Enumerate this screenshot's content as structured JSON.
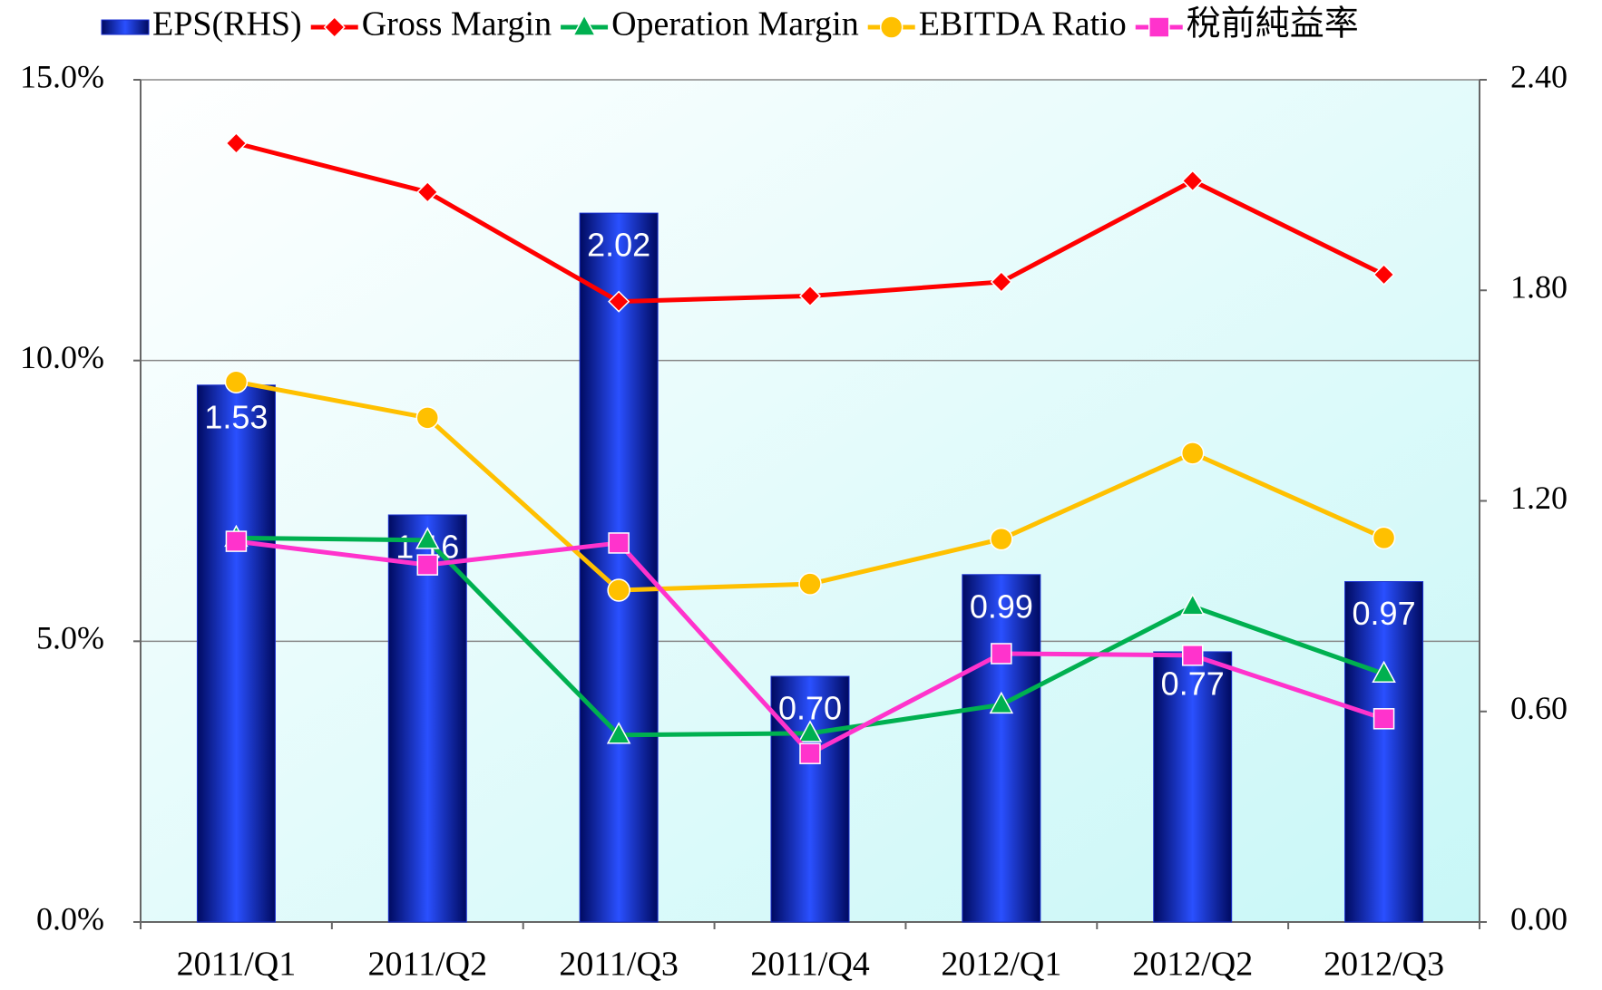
{
  "chart_data": {
    "type": "bar-line",
    "categories": [
      "2011/Q1",
      "2011/Q2",
      "2011/Q3",
      "2011/Q4",
      "2012/Q1",
      "2012/Q2",
      "2012/Q3"
    ],
    "series": [
      {
        "name": "EPS(RHS)",
        "type": "bar",
        "axis": "y2",
        "color": "#1a2fd0",
        "values": [
          1.53,
          1.16,
          2.02,
          0.7,
          0.99,
          0.77,
          0.97
        ],
        "value_labels": [
          "1.53",
          "1.16",
          "2.02",
          "0.70",
          "0.99",
          "0.77",
          "0.97"
        ]
      },
      {
        "name": "Gross Margin",
        "type": "line",
        "color": "#ff0000",
        "marker": "diamond",
        "values": [
          13.87,
          13.0,
          11.05,
          11.15,
          11.4,
          13.2,
          11.53
        ]
      },
      {
        "name": "Operation Margin",
        "type": "line",
        "color": "#00b050",
        "marker": "triangle",
        "values": [
          6.84,
          6.8,
          3.33,
          3.36,
          3.87,
          5.62,
          4.42
        ]
      },
      {
        "name": "EBITDA Ratio",
        "type": "line",
        "color": "#ffc000",
        "marker": "circle",
        "values": [
          9.62,
          8.98,
          5.91,
          6.02,
          6.82,
          8.35,
          6.84
        ]
      },
      {
        "name": "稅前純益率",
        "type": "line",
        "color": "#ff33cc",
        "marker": "square",
        "values": [
          6.78,
          6.36,
          6.75,
          3.0,
          4.78,
          4.75,
          3.62
        ]
      }
    ],
    "ylim": [
      0,
      15
    ],
    "yticks": [
      {
        "value": 0,
        "label": "0.0%"
      },
      {
        "value": 5,
        "label": "5.0%"
      },
      {
        "value": 10,
        "label": "10.0%"
      },
      {
        "value": 15,
        "label": "15.0%"
      }
    ],
    "y2lim": [
      0,
      2.4
    ],
    "y2ticks": [
      {
        "value": 0,
        "label": "0.00"
      },
      {
        "value": 0.6,
        "label": "0.60"
      },
      {
        "value": 1.2,
        "label": "1.20"
      },
      {
        "value": 1.8,
        "label": "1.80"
      },
      {
        "value": 2.4,
        "label": "2.40"
      }
    ],
    "grid": true,
    "legend": "top"
  }
}
